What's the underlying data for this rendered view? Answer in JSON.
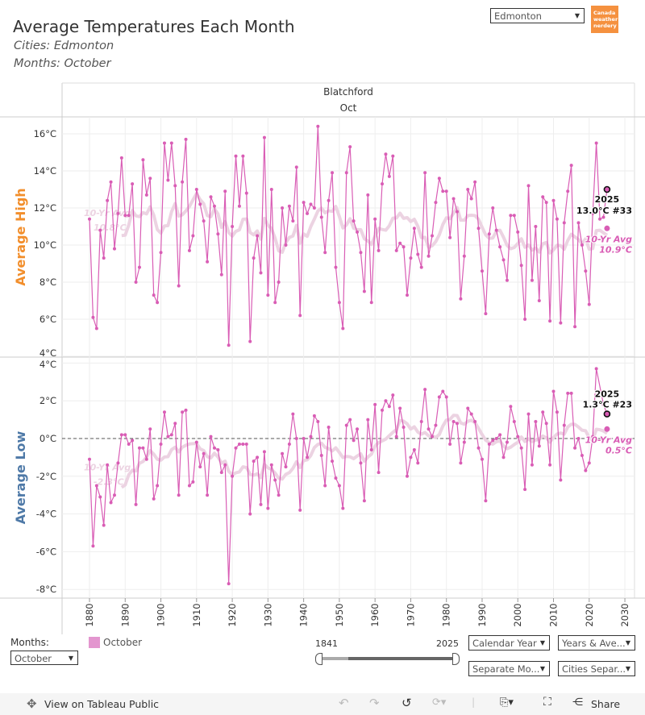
{
  "header": {
    "title": "Average Temperatures Each Month",
    "subtitle_cities": "Cities: Edmonton",
    "subtitle_months": "Months: October",
    "city_select": "Edmonton",
    "logo_text": "Canada weather nerdery",
    "logo_color": "#f5913f"
  },
  "chart_data": {
    "type": "line",
    "column_header": "Blatchford",
    "month_header": "Oct",
    "x_start_year": 1880,
    "xlim": [
      1873,
      2032
    ],
    "x_ticks": [
      "1880",
      "1890",
      "1900",
      "1910",
      "1920",
      "1930",
      "1940",
      "1950",
      "1960",
      "1970",
      "1980",
      "1990",
      "2000",
      "2010",
      "2020",
      "2030"
    ],
    "line_color": "#d95db5",
    "avg_color": "#ecd3e2",
    "panels": [
      {
        "ylabel": "Average High",
        "ylabel_color": "#f28e2b",
        "ylim": [
          4,
          16.8
        ],
        "y_ticks": [
          "16°C",
          "14°C",
          "12°C",
          "10°C",
          "8°C",
          "6°C",
          "4°C"
        ],
        "y_tick_values": [
          16,
          14,
          12,
          10,
          8,
          6,
          4
        ],
        "values": [
          11.4,
          6.1,
          5.5,
          10.8,
          9.3,
          12.4,
          13.4,
          9.8,
          11.7,
          14.7,
          11.6,
          11.6,
          13.3,
          8.0,
          8.8,
          14.6,
          12.7,
          13.6,
          7.3,
          6.9,
          9.6,
          15.5,
          13.5,
          15.5,
          13.2,
          7.8,
          13.4,
          15.7,
          9.7,
          10.5,
          13.0,
          12.2,
          11.3,
          9.1,
          12.6,
          12.1,
          10.6,
          8.4,
          12.9,
          4.6,
          11.0,
          14.8,
          12.1,
          14.8,
          12.8,
          4.8,
          9.3,
          10.5,
          8.5,
          15.8,
          7.3,
          13.0,
          6.9,
          8.0,
          12.0,
          10.0,
          12.1,
          11.3,
          14.2,
          6.2,
          12.3,
          11.7,
          12.2,
          12.0,
          16.4,
          11.5,
          9.6,
          12.4,
          13.9,
          8.8,
          6.9,
          5.5,
          13.9,
          15.3,
          11.3,
          10.7,
          9.6,
          7.5,
          12.7,
          6.9,
          11.4,
          9.7,
          13.3,
          14.9,
          13.7,
          14.8,
          9.7,
          10.1,
          9.9,
          7.3,
          9.3,
          10.9,
          9.5,
          8.8,
          13.9,
          9.4,
          10.5,
          12.3,
          13.6,
          12.9,
          12.9,
          10.4,
          12.5,
          11.8,
          7.1,
          9.4,
          13.0,
          12.5,
          13.4,
          10.9,
          8.6,
          6.3,
          10.6,
          12.0,
          10.8,
          9.9,
          9.2,
          8.1,
          11.6,
          11.6,
          10.7,
          8.9,
          6.0,
          13.2,
          8.1,
          11.0,
          7.0,
          12.6,
          12.3,
          5.9,
          12.4,
          11.4,
          5.8,
          11.2,
          12.9,
          14.3,
          5.6,
          11.2,
          10.0,
          8.6,
          6.8,
          11.7,
          15.5,
          11.4,
          11.5,
          13.0
        ],
        "highlight": {
          "year_label": "2025",
          "value_label": "13.0°C #33",
          "value": 13.0
        },
        "avg_start_label": [
          "10-Yr Avg",
          "10.8°C"
        ],
        "avg_end": {
          "label": "10-Yr Avg",
          "value_label": "10.9°C",
          "value": 10.9
        }
      },
      {
        "ylabel": "Average Low",
        "ylabel_color": "#4e79a7",
        "ylim": [
          -8.5,
          4.3
        ],
        "y_ticks": [
          "4°C",
          "2°C",
          "0°C",
          "-2°C",
          "-4°C",
          "-6°C",
          "-8°C"
        ],
        "y_tick_values": [
          4,
          2,
          0,
          -2,
          -4,
          -6,
          -8
        ],
        "zero_line": true,
        "values": [
          -1.1,
          -5.7,
          -2.5,
          -3.1,
          -4.6,
          -1.4,
          -3.4,
          -3.0,
          -1.3,
          0.2,
          0.2,
          -0.3,
          -0.1,
          -3.5,
          -0.5,
          -0.5,
          -1.1,
          0.5,
          -3.2,
          -2.5,
          -0.3,
          1.4,
          0.1,
          0.2,
          0.8,
          -3.0,
          1.4,
          1.5,
          -2.5,
          -2.3,
          -0.2,
          -1.5,
          -0.8,
          -3.0,
          0.1,
          -0.5,
          -0.6,
          -1.8,
          -1.4,
          -7.7,
          -2.0,
          -0.5,
          -0.3,
          -0.3,
          -0.3,
          -4.0,
          -1.2,
          -1.0,
          -3.5,
          -0.7,
          -3.7,
          -1.4,
          -2.2,
          -3.0,
          -0.8,
          -1.5,
          -0.3,
          1.3,
          0.0,
          -3.8,
          0.0,
          -1.0,
          0.1,
          1.2,
          0.9,
          -0.9,
          -2.5,
          0.6,
          -1.2,
          -2.1,
          -2.5,
          -3.7,
          0.7,
          1.0,
          -0.1,
          0.5,
          -1.3,
          -3.3,
          1.0,
          -0.6,
          1.8,
          -1.8,
          1.5,
          2.0,
          1.7,
          2.3,
          0.1,
          1.6,
          0.6,
          -2.0,
          -1.0,
          -0.6,
          -1.3,
          0.9,
          2.6,
          0.5,
          0.1,
          0.7,
          2.2,
          2.5,
          2.2,
          -0.3,
          0.9,
          0.8,
          -1.3,
          -0.2,
          1.6,
          1.3,
          0.9,
          -0.5,
          -1.1,
          -3.3,
          -0.3,
          -0.1,
          0.0,
          0.2,
          -1.0,
          -0.2,
          1.7,
          0.9,
          0.1,
          -0.5,
          -2.7,
          1.3,
          -1.4,
          0.9,
          -0.4,
          1.4,
          0.8,
          -1.4,
          2.5,
          1.4,
          -2.2,
          0.7,
          2.4,
          2.4,
          -0.5,
          0.0,
          -0.9,
          -1.7,
          -1.3,
          0.1,
          3.7,
          null,
          1.8,
          1.3
        ],
        "highlight": {
          "year_label": "2025",
          "value_label": "1.3°C #23",
          "value": 1.3
        },
        "avg_start_label": [
          "10-Yr Avg",
          "-2.3°C"
        ],
        "avg_end": {
          "label": "10-Yr Avg",
          "value_label": "0.5°C",
          "value": 0.5
        }
      }
    ],
    "grid": true
  },
  "controls": {
    "months_label": "Months:",
    "months_value": "October",
    "legend_label": "October",
    "legend_color": "#e396cf",
    "range_start": "1841",
    "range_end": "2025",
    "range_selected_fraction": [
      0.0,
      1.0
    ],
    "dropdown_1": "Calendar Year",
    "dropdown_2": "Years & Ave...",
    "dropdown_3": "Separate Mo...",
    "dropdown_4": "Cities Separ..."
  },
  "toolbar": {
    "view_on_public": "View on Tableau Public",
    "share": "Share"
  }
}
